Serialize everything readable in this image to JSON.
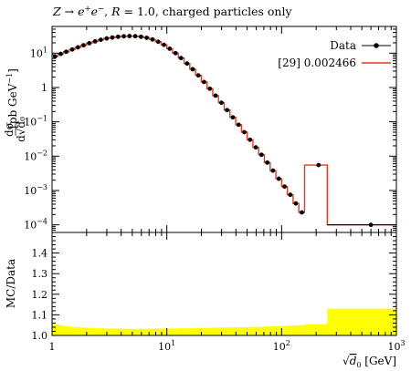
{
  "chart_data": {
    "type": "line",
    "title": "Z → e⁺e⁻, R = 1.0, charged particles only",
    "title_parts": {
      "a": "Z → e",
      "sup1": "+",
      "b": "e",
      "sup2": "−",
      "c": ", ",
      "r": "R",
      "d": " = 1.0, charged particles only"
    },
    "xlabel": "√d₀ [GeV]",
    "xlabel_parts": {
      "root": "√",
      "var": "d",
      "sub": "0",
      "unit": " [GeV]"
    },
    "ylabel": "dσ/d√d₀ [pb GeV⁻¹]",
    "ylabel_parts": {
      "num": "dσ",
      "den": "d√d₀",
      "unit": "[pb GeV",
      "exp": "−1",
      "close": "]"
    },
    "ratio_ylabel": "MC/Data",
    "xscale": "log",
    "yscale": "log",
    "xlim": [
      1,
      1000
    ],
    "ylim": [
      6e-05,
      60
    ],
    "ratio_ylim": [
      1.0,
      1.5
    ],
    "grid": false,
    "legend_position": "top-right",
    "x_tick_labels": [
      {
        "value": 1,
        "base": "1",
        "exp": ""
      },
      {
        "value": 10,
        "base": "10",
        "exp": "1"
      },
      {
        "value": 100,
        "base": "10",
        "exp": "2"
      },
      {
        "value": 1000,
        "base": "10",
        "exp": "3"
      }
    ],
    "y_tick_labels": [
      {
        "value": 10,
        "base": "10",
        "exp": "1"
      },
      {
        "value": 1,
        "base": "1",
        "exp": ""
      },
      {
        "value": 0.1,
        "base": "10",
        "exp": "−1"
      },
      {
        "value": 0.01,
        "base": "10",
        "exp": "−2"
      },
      {
        "value": 0.001,
        "base": "10",
        "exp": "−3"
      },
      {
        "value": 0.0001,
        "base": "10",
        "exp": "−4"
      }
    ],
    "ratio_tick_labels": [
      "1.0",
      "1.1",
      "1.2",
      "1.3",
      "1.4"
    ],
    "bin_edges": [
      1.0,
      1.122,
      1.259,
      1.413,
      1.585,
      1.778,
      1.995,
      2.239,
      2.512,
      2.818,
      3.162,
      3.548,
      3.981,
      4.467,
      5.012,
      5.623,
      6.31,
      7.079,
      7.943,
      8.913,
      10.0,
      11.22,
      12.59,
      14.13,
      15.85,
      17.78,
      19.95,
      22.39,
      25.12,
      28.18,
      31.62,
      35.48,
      39.81,
      44.67,
      50.12,
      56.23,
      63.1,
      70.79,
      79.43,
      89.13,
      100.0,
      112.2,
      125.9,
      141.3,
      158.5,
      250.0,
      1000.0
    ],
    "series": [
      {
        "name": "Data",
        "color": "#000000",
        "marker": "circle",
        "x": [
          1.06,
          1.19,
          1.33,
          1.5,
          1.68,
          1.88,
          2.11,
          2.37,
          2.66,
          2.99,
          3.35,
          3.76,
          4.22,
          4.73,
          5.31,
          5.96,
          6.68,
          7.5,
          8.41,
          9.44,
          10.6,
          11.9,
          13.3,
          15.0,
          16.8,
          18.8,
          21.1,
          23.7,
          26.6,
          29.9,
          33.5,
          37.6,
          42.2,
          47.3,
          53.1,
          59.6,
          66.8,
          75.0,
          84.1,
          94.4,
          106.0,
          119.0,
          133.0,
          150.0,
          210.0,
          600.0
        ],
        "values": [
          8.0,
          9.5,
          11.0,
          12.8,
          14.8,
          17.0,
          19.5,
          22.0,
          24.5,
          26.8,
          28.5,
          30.0,
          31.0,
          31.5,
          31.2,
          30.0,
          28.0,
          25.0,
          21.5,
          17.5,
          13.5,
          10.0,
          7.2,
          5.0,
          3.4,
          2.25,
          1.45,
          0.92,
          0.58,
          0.36,
          0.22,
          0.135,
          0.082,
          0.05,
          0.03,
          0.018,
          0.011,
          0.0065,
          0.0038,
          0.0022,
          0.0013,
          0.00075,
          0.00042,
          0.00023,
          0.0,
          0.0001
        ]
      },
      {
        "name": "[29] 0.002466",
        "color": "#e8391a",
        "type": "step",
        "values": [
          8.0,
          9.5,
          11.0,
          12.8,
          14.8,
          17.0,
          19.5,
          22.0,
          24.5,
          26.8,
          28.5,
          30.0,
          31.0,
          31.5,
          31.2,
          30.0,
          28.0,
          25.0,
          21.5,
          17.5,
          13.5,
          10.0,
          7.2,
          5.0,
          3.4,
          2.25,
          1.45,
          0.92,
          0.58,
          0.36,
          0.22,
          0.135,
          0.082,
          0.05,
          0.03,
          0.018,
          0.011,
          0.0065,
          0.0038,
          0.0022,
          0.0013,
          0.00075,
          0.00042,
          0.00023,
          0.0055,
          0.0001
        ]
      }
    ],
    "ratio_band": {
      "color": "#ffff00",
      "upper": [
        1.055,
        1.05,
        1.045,
        1.042,
        1.04,
        1.038,
        1.037,
        1.036,
        1.035,
        1.034,
        1.033,
        1.033,
        1.032,
        1.032,
        1.032,
        1.032,
        1.032,
        1.032,
        1.033,
        1.033,
        1.034,
        1.034,
        1.035,
        1.035,
        1.036,
        1.036,
        1.037,
        1.037,
        1.038,
        1.038,
        1.039,
        1.039,
        1.04,
        1.04,
        1.041,
        1.042,
        1.042,
        1.043,
        1.044,
        1.045,
        1.046,
        1.047,
        1.048,
        1.05,
        1.055,
        1.13
      ],
      "lower": [
        1.0,
        1.0,
        1.0,
        1.0,
        1.0,
        1.0,
        1.0,
        1.0,
        1.0,
        1.0,
        1.0,
        1.0,
        1.0,
        1.0,
        1.0,
        1.0,
        1.0,
        1.0,
        1.0,
        1.0,
        1.0,
        1.0,
        1.0,
        1.0,
        1.0,
        1.0,
        1.0,
        1.0,
        1.0,
        1.0,
        1.0,
        1.0,
        1.0,
        1.0,
        1.0,
        1.0,
        1.0,
        1.0,
        1.0,
        1.0,
        1.0,
        1.0,
        1.0,
        1.0,
        1.0,
        1.0
      ]
    }
  }
}
